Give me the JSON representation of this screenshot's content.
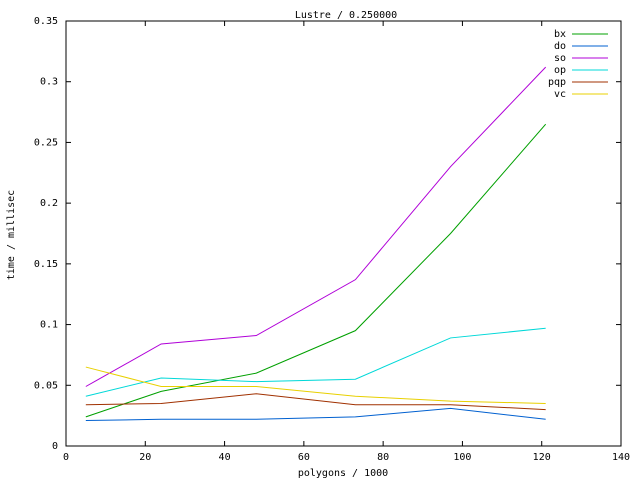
{
  "chart_data": {
    "type": "line",
    "title": "Lustre / 0.250000",
    "xlabel": "polygons / 1000",
    "ylabel": "time / millisec",
    "xlim": [
      0,
      140
    ],
    "ylim": [
      0,
      0.35
    ],
    "xticks": [
      0,
      20,
      40,
      60,
      80,
      100,
      120,
      140
    ],
    "yticks": [
      0,
      0.05,
      0.1,
      0.15,
      0.2,
      0.25,
      0.3,
      0.35
    ],
    "xtick_labels": [
      "0",
      "20",
      "40",
      "60",
      "80",
      "100",
      "120",
      "140"
    ],
    "ytick_labels": [
      "0",
      "0.05",
      "0.1",
      "0.15",
      "0.2",
      "0.25",
      "0.3",
      "0.35"
    ],
    "grid": false,
    "legend_position": "top-right",
    "x": [
      5,
      24,
      48,
      73,
      97,
      121
    ],
    "series": [
      {
        "name": "bx",
        "color": "#00a000",
        "values": [
          0.024,
          0.045,
          0.06,
          0.095,
          0.175,
          0.265
        ]
      },
      {
        "name": "do",
        "color": "#0060d0",
        "values": [
          0.021,
          0.022,
          0.022,
          0.024,
          0.031,
          0.022
        ]
      },
      {
        "name": "so",
        "color": "#b000d8",
        "values": [
          0.049,
          0.084,
          0.091,
          0.137,
          0.23,
          0.312
        ]
      },
      {
        "name": "op",
        "color": "#00d8d8",
        "values": [
          0.041,
          0.056,
          0.053,
          0.055,
          0.089,
          0.097
        ]
      },
      {
        "name": "pqp",
        "color": "#a03000",
        "values": [
          0.034,
          0.035,
          0.043,
          0.034,
          0.034,
          0.03
        ]
      },
      {
        "name": "vc",
        "color": "#e8d000",
        "values": [
          0.065,
          0.049,
          0.049,
          0.041,
          0.037,
          0.035
        ]
      }
    ]
  }
}
